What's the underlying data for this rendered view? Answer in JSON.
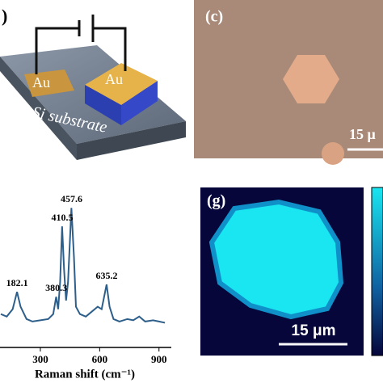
{
  "schematic": {
    "panel_label": ")",
    "electrode_left": "Au",
    "electrode_right": "Au",
    "substrate": "Si substrate"
  },
  "micrograph": {
    "panel_label": "(c)",
    "scale_bar": "15 μ"
  },
  "map": {
    "panel_label": "(g)",
    "scale_bar": "15 μm"
  },
  "chart_data": {
    "type": "line",
    "x_label": "Raman shift (cm⁻¹)",
    "x": [
      100,
      130,
      160,
      182,
      200,
      230,
      260,
      300,
      340,
      365,
      380,
      390,
      400,
      410,
      420,
      430,
      440,
      457,
      470,
      480,
      500,
      530,
      560,
      590,
      610,
      635,
      650,
      670,
      700,
      740,
      770,
      800,
      830,
      870,
      900,
      930
    ],
    "series": [
      {
        "color": "#2e5f8a",
        "values": [
          14,
          12,
          18,
          32,
          20,
          10,
          8,
          9,
          10,
          14,
          28,
          18,
          40,
          85,
          50,
          25,
          40,
          100,
          60,
          20,
          14,
          12,
          16,
          20,
          18,
          38,
          20,
          10,
          8,
          10,
          9,
          12,
          8,
          9,
          8,
          7
        ]
      }
    ],
    "peaks": [
      182.1,
      380.3,
      410.5,
      457.6,
      635.2
    ],
    "xlim": [
      100,
      950
    ],
    "ylim": [
      -13,
      110
    ],
    "xticks": [
      300,
      600,
      900
    ]
  }
}
